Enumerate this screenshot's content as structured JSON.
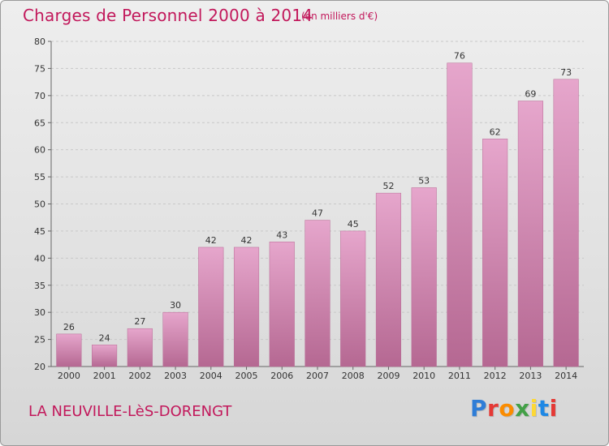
{
  "header": {
    "title": "Charges de Personnel 2000 à 2014",
    "subtitle": "(en milliers d'€)"
  },
  "footer": {
    "place": "LA NEUVILLE-LèS-DORENGT",
    "logo": "Proxiti",
    "logo_colors": [
      "#2e7dd7",
      "#e53935",
      "#fb8c00",
      "#43a047",
      "#fdd835",
      "#1e88e5",
      "#e53935"
    ]
  },
  "colors": {
    "bar_top": "#e6a6cc",
    "bar_bottom": "#b56892",
    "text_accent": "#c2185b"
  },
  "chart_data": {
    "type": "bar",
    "title": "Charges de Personnel 2000 à 2014",
    "subtitle": "(en milliers d'€)",
    "categories": [
      "2000",
      "2001",
      "2002",
      "2003",
      "2004",
      "2005",
      "2006",
      "2007",
      "2008",
      "2009",
      "2010",
      "2011",
      "2012",
      "2013",
      "2014"
    ],
    "values": [
      26,
      24,
      27,
      30,
      42,
      42,
      43,
      47,
      45,
      52,
      53,
      76,
      62,
      69,
      73
    ],
    "ylim": [
      20,
      80
    ],
    "yticks": [
      20,
      25,
      30,
      35,
      40,
      45,
      50,
      55,
      60,
      65,
      70,
      75,
      80
    ],
    "grid": true,
    "xlabel": "",
    "ylabel": ""
  }
}
